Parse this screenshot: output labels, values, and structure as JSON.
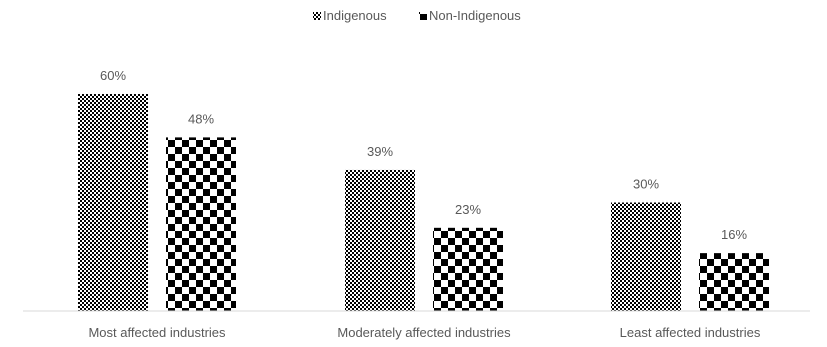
{
  "chart_data": {
    "type": "bar",
    "title": "",
    "xlabel": "",
    "ylabel": "",
    "ylim": [
      0,
      65
    ],
    "grid": false,
    "legend_position": "top-center",
    "categories": [
      "Most affected industries",
      "Moderately affected industries",
      "Least affected industries"
    ],
    "series": [
      {
        "name": "Indigenous",
        "values": [
          60,
          39,
          30
        ],
        "labels": [
          "60%",
          "39%",
          "30%"
        ],
        "pattern": "fine-checker"
      },
      {
        "name": "Non-Indigenous",
        "values": [
          48,
          23,
          16
        ],
        "labels": [
          "48%",
          "23%",
          "16%"
        ],
        "pattern": "large-checker"
      }
    ],
    "colors": {
      "ink": "#000000",
      "text": "#595959",
      "axis": "#d9d9d9"
    }
  }
}
